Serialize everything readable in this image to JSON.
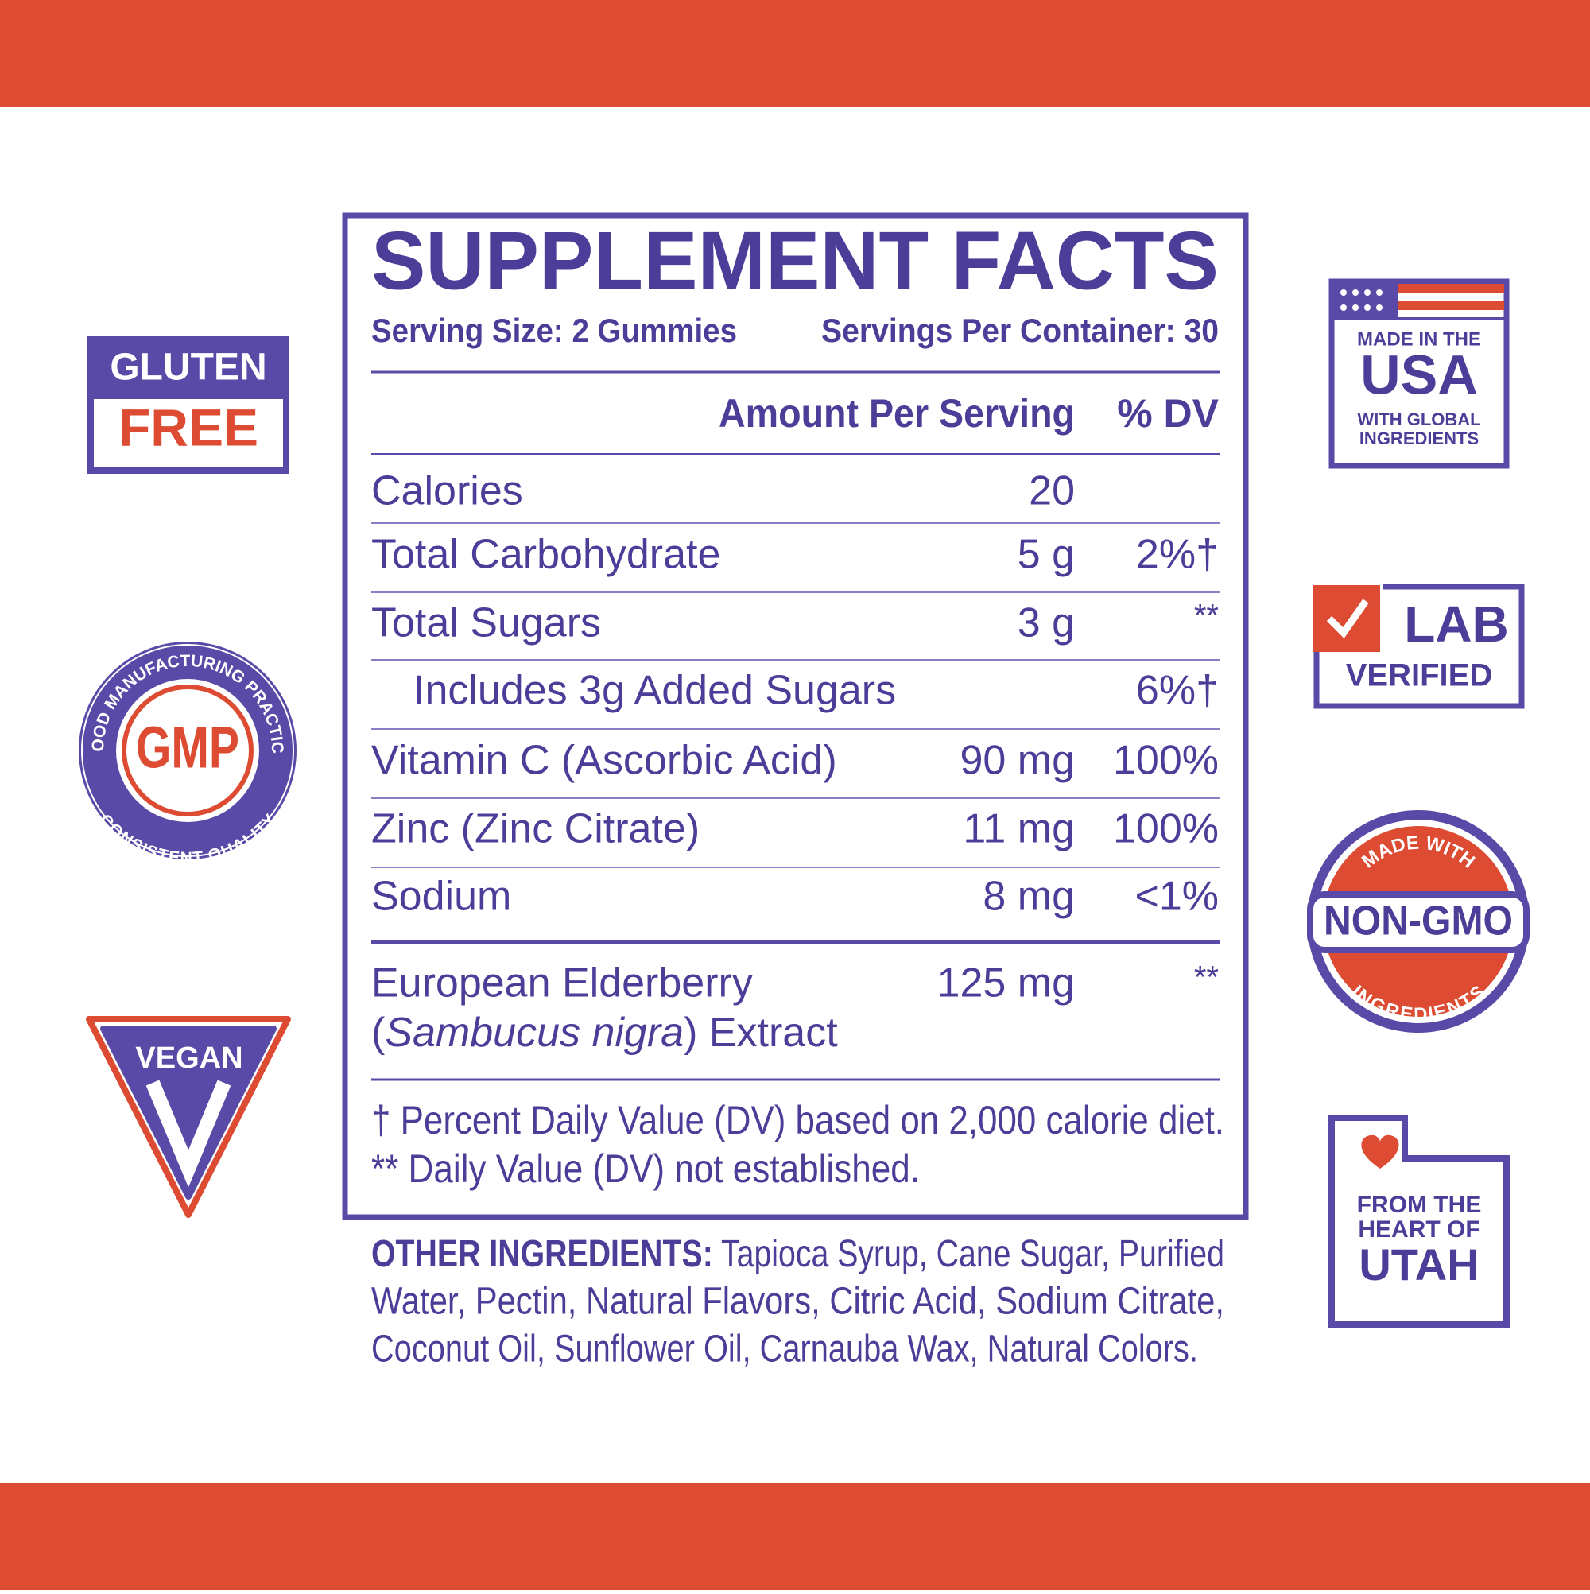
{
  "facts": {
    "title": "SUPPLEMENT FACTS",
    "serving_size": "Serving Size: 2 Gummies",
    "servings_per_container": "Servings Per Container: 30",
    "header": {
      "amount": "Amount Per Serving",
      "dv": "% DV"
    },
    "rows": [
      {
        "name": "Calories",
        "amount": "20"
      },
      {
        "name": "Total Carbohydrate",
        "amount": "5 g",
        "dv": "2%†"
      },
      {
        "name": "Total Sugars",
        "amount": "3 g",
        "dv": "**"
      },
      {
        "name": "Includes 3g Added Sugars",
        "dv": "6%†",
        "indent": true
      },
      {
        "name": "Vitamin C (Ascorbic Acid)",
        "amount": "90 mg",
        "dv": "100%"
      },
      {
        "name": "Zinc (Zinc Citrate)",
        "amount": "11 mg",
        "dv": "100%"
      },
      {
        "name": "Sodium",
        "amount": "8 mg",
        "dv": "<1%"
      }
    ],
    "elderberry": {
      "line1": "European Elderberry",
      "open": "(",
      "italic": "Sambucus nigra",
      "close": ") Extract",
      "amount": "125 mg",
      "dv": "**"
    },
    "footnotes": [
      "† Percent Daily Value (DV) based on 2,000 calorie diet.",
      "** Daily Value (DV) not established."
    ]
  },
  "other_ingredients": {
    "label": "OTHER INGREDIENTS:",
    "lines": [
      "Tapioca Syrup, Cane Sugar, Purified",
      "Water, Pectin, Natural Flavors, Citric Acid, Sodium Citrate,",
      "Coconut Oil, Sunflower Oil, Carnauba Wax, Natural Colors."
    ]
  },
  "badges": {
    "gluten": [
      "GLUTEN",
      "FREE"
    ],
    "gmp": {
      "center": "GMP",
      "top": "GOOD MANUFACTURING PRACTICE",
      "bottom": "CONSISTENT QUALITY"
    },
    "vegan": "VEGAN",
    "usa": [
      "MADE IN THE",
      "USA",
      "WITH GLOBAL",
      "INGREDIENTS"
    ],
    "lab": [
      "LAB",
      "VERIFIED"
    ],
    "nongmo": {
      "top": "MADE WITH",
      "center": "NON-GMO",
      "bottom": "INGREDIENTS"
    },
    "utah": [
      "FROM THE",
      "HEART OF",
      "UTAH"
    ]
  }
}
